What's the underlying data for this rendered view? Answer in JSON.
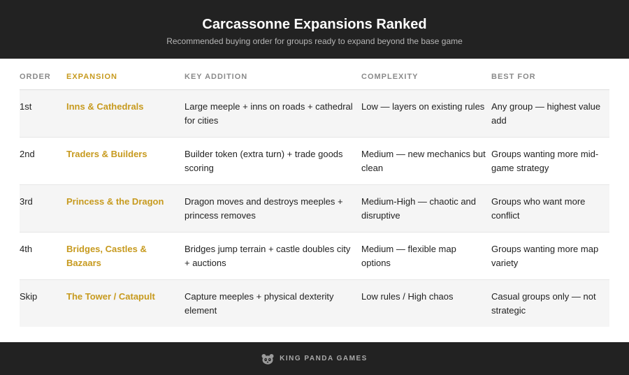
{
  "header": {
    "title": "Carcassonne Expansions Ranked",
    "subtitle": "Recommended buying order for groups ready to expand beyond the base game"
  },
  "table": {
    "columns": [
      "ORDER",
      "EXPANSION",
      "KEY ADDITION",
      "COMPLEXITY",
      "BEST FOR"
    ],
    "rows": [
      {
        "order": "1st",
        "expansion": "Inns & Cathedrals",
        "key_addition": "Large meeple + inns on roads + cathedral for cities",
        "complexity": "Low — layers on existing rules",
        "best_for": "Any group — highest value add"
      },
      {
        "order": "2nd",
        "expansion": "Traders & Builders",
        "key_addition": "Builder token (extra turn) + trade goods scoring",
        "complexity": "Medium — new mechanics but clean",
        "best_for": "Groups wanting more mid-game strategy"
      },
      {
        "order": "3rd",
        "expansion": "Princess & the Dragon",
        "key_addition": "Dragon moves and destroys meeples + princess removes",
        "complexity": "Medium-High — chaotic and disruptive",
        "best_for": "Groups who want more conflict"
      },
      {
        "order": "4th",
        "expansion": "Bridges, Castles & Bazaars",
        "key_addition": "Bridges jump terrain + castle doubles city + auctions",
        "complexity": "Medium — flexible map options",
        "best_for": "Groups wanting more map variety"
      },
      {
        "order": "Skip",
        "expansion": "The Tower / Catapult",
        "key_addition": "Capture meeples + physical dexterity element",
        "complexity": "Low rules / High chaos",
        "best_for": "Casual groups only — not strategic"
      }
    ]
  },
  "footer": {
    "brand": "KING PANDA GAMES",
    "icon": "panda-icon"
  },
  "colors": {
    "header_bg": "#222222",
    "accent": "#c79a1e",
    "row_stripe": "#f5f5f5"
  }
}
